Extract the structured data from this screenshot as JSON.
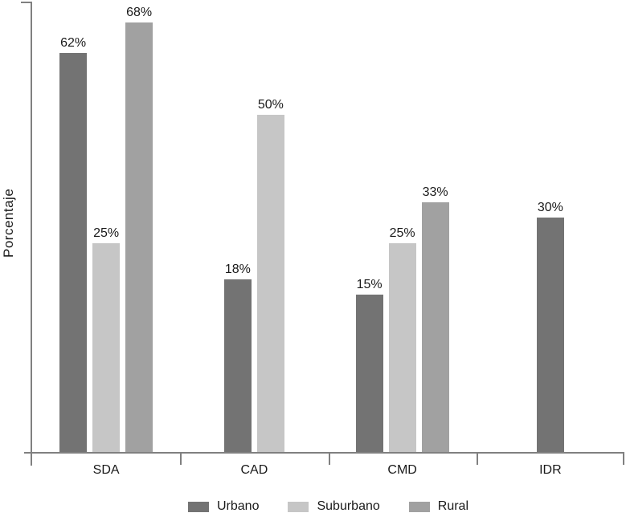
{
  "chart_data": {
    "type": "bar",
    "ylabel": "Porcentaje",
    "value_suffix": "%",
    "categories": [
      "SDA",
      "CAD",
      "CMD",
      "IDR"
    ],
    "series": [
      {
        "name": "Urbano",
        "color": "#737373",
        "values": [
          62,
          18,
          15,
          30
        ]
      },
      {
        "name": "Suburbano",
        "color": "#c6c6c6",
        "values": [
          25,
          50,
          25,
          null
        ]
      },
      {
        "name": "Rural",
        "color": "#a1a1a1",
        "values": [
          68,
          null,
          33,
          null
        ]
      }
    ],
    "legend_position": "bottom",
    "grid": false,
    "axis_color": "#808080",
    "text_color": "#1a1a1a"
  }
}
